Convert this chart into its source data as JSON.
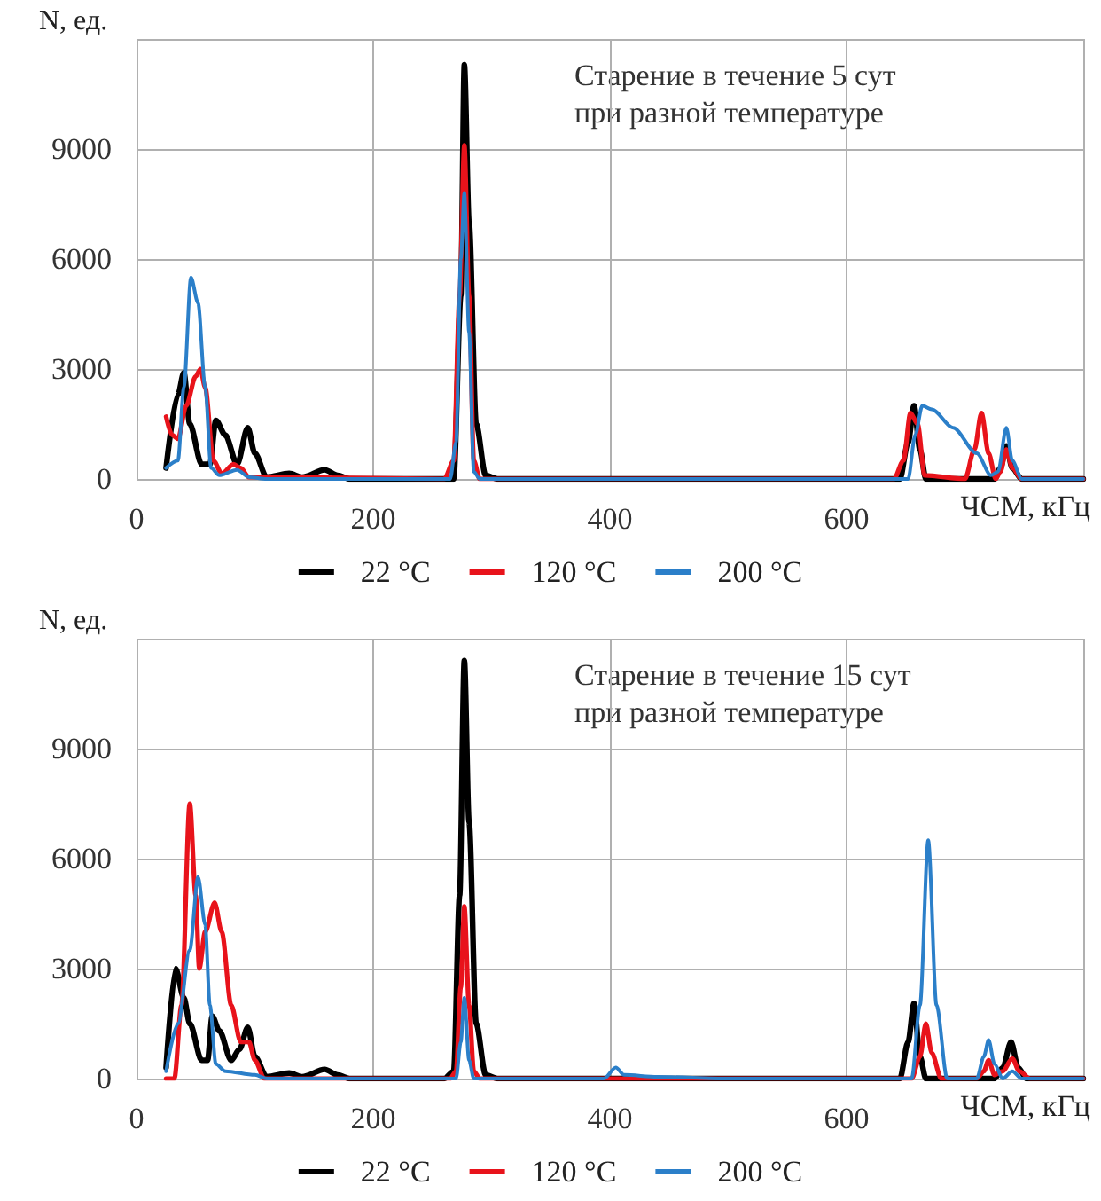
{
  "chart_data": [
    {
      "type": "line",
      "xlabel": "ЧСМ, кГц",
      "ylabel": "N, ед.",
      "annotations": [
        "Старение в течение 5 сут\nпри разной температуре"
      ],
      "xlim": [
        0,
        800
      ],
      "xticks": [
        0,
        200,
        400,
        600,
        {
          "value": 800,
          "label": null
        }
      ],
      "ylim": [
        0,
        12000
      ],
      "yticks": [
        0,
        3000,
        6000,
        9000,
        {
          "value": 12000,
          "label": null
        }
      ],
      "grid": true,
      "legend": "bottom",
      "marker": "none",
      "line_style": "solid",
      "series": [
        {
          "name": "22 °C",
          "color": "#000000",
          "x": [
            25,
            35,
            40,
            45,
            55,
            62,
            67,
            75,
            85,
            94,
            100,
            110,
            129,
            140,
            159,
            170,
            180,
            260,
            268,
            274,
            277,
            281,
            287,
            295,
            305,
            645,
            652,
            657,
            662,
            667,
            725,
            730,
            735,
            740,
            748,
            800
          ],
          "values": [
            300,
            2300,
            2900,
            1500,
            400,
            400,
            1600,
            1200,
            400,
            1400,
            700,
            50,
            150,
            50,
            250,
            100,
            0,
            0,
            0,
            5000,
            11300,
            7000,
            1500,
            100,
            0,
            0,
            1000,
            2000,
            800,
            0,
            0,
            300,
            900,
            300,
            0,
            0
          ]
        },
        {
          "name": "120 °C",
          "color": "#e8131b",
          "x": [
            25,
            30,
            35,
            42,
            50,
            54,
            58,
            65,
            72,
            82,
            88,
            95,
            260,
            268,
            273,
            277,
            281,
            285,
            290,
            640,
            648,
            654,
            660,
            666,
            700,
            708,
            714,
            720,
            726,
            730,
            735,
            740,
            748,
            800
          ],
          "values": [
            1700,
            1200,
            1100,
            2000,
            2800,
            3000,
            2500,
            500,
            150,
            400,
            300,
            50,
            0,
            500,
            5000,
            9100,
            5000,
            500,
            0,
            0,
            500,
            1800,
            1500,
            100,
            0,
            800,
            1800,
            700,
            0,
            200,
            800,
            300,
            0,
            0
          ]
        },
        {
          "name": "200 °C",
          "color": "#2b7fc9",
          "x": [
            25,
            35,
            40,
            46,
            52,
            58,
            63,
            70,
            85,
            95,
            110,
            265,
            270,
            274,
            277,
            281,
            285,
            290,
            652,
            658,
            664,
            672,
            690,
            710,
            722,
            728,
            735,
            740,
            748,
            800
          ],
          "values": [
            300,
            500,
            2500,
            5500,
            4800,
            2500,
            300,
            100,
            250,
            50,
            0,
            0,
            1000,
            6000,
            7800,
            4000,
            200,
            0,
            0,
            1200,
            2000,
            1900,
            1400,
            700,
            100,
            200,
            1400,
            500,
            0,
            0
          ]
        }
      ]
    },
    {
      "type": "line",
      "xlabel": "ЧСМ, кГц",
      "ylabel": "N, ед.",
      "annotations": [
        "Старение в течение 15 сут\nпри разной температуре"
      ],
      "xlim": [
        0,
        800
      ],
      "xticks": [
        0,
        200,
        400,
        600,
        {
          "value": 800,
          "label": null
        }
      ],
      "ylim": [
        0,
        12000
      ],
      "yticks": [
        0,
        3000,
        6000,
        9000,
        {
          "value": 12000,
          "label": null
        }
      ],
      "grid": true,
      "legend": "bottom",
      "marker": "none",
      "line_style": "solid",
      "series": [
        {
          "name": "22 °C",
          "color": "#000000",
          "x": [
            25,
            33,
            40,
            45,
            55,
            60,
            64,
            70,
            80,
            87,
            94,
            100,
            110,
            129,
            140,
            159,
            170,
            180,
            260,
            268,
            273,
            277,
            281,
            287,
            295,
            305,
            645,
            652,
            657,
            662,
            667,
            725,
            732,
            739,
            745,
            752,
            800
          ],
          "values": [
            300,
            3000,
            2200,
            1500,
            500,
            500,
            1700,
            1300,
            500,
            800,
            1400,
            600,
            50,
            150,
            50,
            250,
            100,
            0,
            0,
            200,
            5000,
            11400,
            7000,
            1500,
            100,
            0,
            0,
            1000,
            2050,
            600,
            0,
            0,
            300,
            1000,
            300,
            0,
            0
          ]
        },
        {
          "name": "120 °C",
          "color": "#e8131b",
          "x": [
            25,
            32,
            38,
            45,
            50,
            53,
            58,
            66,
            72,
            80,
            88,
            95,
            100,
            108,
            265,
            270,
            274,
            277,
            281,
            285,
            290,
            655,
            662,
            667,
            672,
            680,
            710,
            716,
            720,
            725,
            732,
            740,
            746,
            755,
            800
          ],
          "values": [
            0,
            0,
            2000,
            7500,
            5000,
            3000,
            4000,
            4800,
            4000,
            2000,
            1000,
            1000,
            500,
            0,
            0,
            200,
            2500,
            4700,
            2000,
            200,
            0,
            0,
            600,
            1500,
            700,
            0,
            0,
            200,
            500,
            100,
            200,
            550,
            200,
            0,
            0
          ]
        },
        {
          "name": "200 °C",
          "color": "#2b7fc9",
          "x": [
            25,
            35,
            45,
            52,
            58,
            62,
            67,
            75,
            100,
            110,
            270,
            274,
            277,
            281,
            285,
            395,
            405,
            412,
            440,
            500,
            655,
            662,
            669,
            676,
            685,
            710,
            716,
            720,
            725,
            732,
            740,
            748,
            800
          ],
          "values": [
            200,
            1500,
            3500,
            5500,
            4200,
            2000,
            400,
            200,
            100,
            0,
            0,
            1000,
            2200,
            500,
            0,
            0,
            300,
            100,
            50,
            0,
            0,
            2000,
            6500,
            2000,
            0,
            0,
            600,
            1050,
            400,
            0,
            200,
            0,
            0
          ]
        }
      ]
    }
  ]
}
